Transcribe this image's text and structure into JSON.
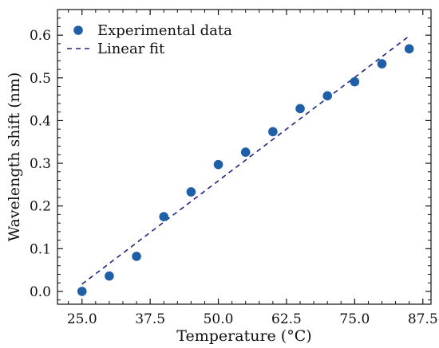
{
  "chart_data": {
    "type": "scatter",
    "xlabel": "Temperature (°C)",
    "ylabel": "Wavelength shift (nm)",
    "xlim": [
      20.5,
      89
    ],
    "ylim": [
      -0.03,
      0.66
    ],
    "xticks": [
      25.0,
      37.5,
      50.0,
      62.5,
      75.0,
      87.5
    ],
    "xtick_labels": [
      "25.0",
      "37.5",
      "50.0",
      "62.5",
      "75.0",
      "87.5"
    ],
    "yticks": [
      0.0,
      0.1,
      0.2,
      0.3,
      0.4,
      0.5,
      0.6
    ],
    "ytick_labels": [
      "0.0",
      "0.1",
      "0.2",
      "0.3",
      "0.4",
      "0.5",
      "0.6"
    ],
    "grid": false,
    "legend_position": "top-left",
    "series": [
      {
        "name": "Experimental data",
        "kind": "scatter",
        "color": "#1f5fa8",
        "x": [
          25,
          30,
          35,
          40,
          45,
          50,
          55,
          60,
          65,
          70,
          75,
          80,
          85
        ],
        "y": [
          0.0,
          0.036,
          0.082,
          0.175,
          0.233,
          0.297,
          0.326,
          0.374,
          0.428,
          0.458,
          0.491,
          0.533,
          0.568
        ]
      },
      {
        "name": "Linear fit",
        "kind": "line",
        "style": "dashed",
        "color": "#1a237e",
        "x": [
          25,
          85
        ],
        "y": [
          0.017,
          0.598
        ]
      }
    ]
  }
}
